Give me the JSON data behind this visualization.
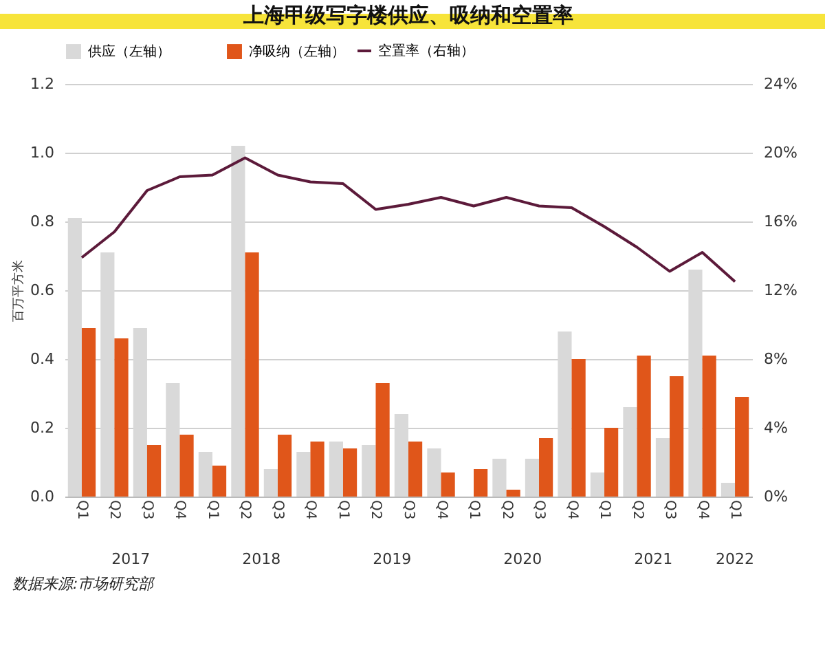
{
  "chart_data": {
    "type": "bar",
    "title": "上海甲级写字楼供应、吸纳和空置率",
    "ylabel": "百万平方米",
    "categories": [
      "Q1",
      "Q2",
      "Q3",
      "Q4",
      "Q1",
      "Q2",
      "Q3",
      "Q4",
      "Q1",
      "Q2",
      "Q3",
      "Q4",
      "Q1",
      "Q2",
      "Q3",
      "Q4",
      "Q1",
      "Q2",
      "Q3",
      "Q4",
      "Q1"
    ],
    "series": [
      {
        "name": "供应（左轴）",
        "color": "#d9d9d9",
        "values": [
          0.81,
          0.71,
          0.49,
          0.33,
          0.13,
          1.02,
          0.08,
          0.13,
          0.16,
          0.15,
          0.24,
          0.14,
          0,
          0.11,
          0.11,
          0.48,
          0.07,
          0.26,
          0.17,
          0.66,
          0.04
        ]
      },
      {
        "name": "净吸纳（左轴）",
        "color": "#e0561a",
        "values": [
          0.49,
          0.46,
          0.15,
          0.18,
          0.09,
          0.71,
          0.18,
          0.16,
          0.14,
          0.33,
          0.16,
          0.07,
          0.08,
          0.02,
          0.17,
          0.4,
          0.2,
          0.41,
          0.35,
          0.41,
          0.29
        ]
      },
      {
        "name": "空置率（右轴）",
        "color": "#5c1a3a",
        "type": "line",
        "axis": "y2",
        "values": [
          13.9,
          15.4,
          17.8,
          18.6,
          18.7,
          19.7,
          18.7,
          18.3,
          18.2,
          16.7,
          17.0,
          17.4,
          16.9,
          17.4,
          16.9,
          16.8,
          15.7,
          14.5,
          13.1,
          14.2,
          12.5
        ]
      }
    ],
    "ylim": [
      0,
      1.2
    ],
    "yticks": [
      {
        "value": 0,
        "label": "0.0"
      },
      0.2,
      0.4,
      0.6,
      0.8,
      {
        "value": 1,
        "label": "1.0"
      },
      1.2
    ],
    "y2lim": [
      0,
      24
    ],
    "y2ticks": [
      {
        "value": 0,
        "label": "0%"
      },
      {
        "value": 4,
        "label": "4%"
      },
      {
        "value": 8,
        "label": "8%"
      },
      {
        "value": 12,
        "label": "12%"
      },
      {
        "value": 16,
        "label": "16%"
      },
      {
        "value": 20,
        "label": "20%"
      },
      {
        "value": 24,
        "label": "24%"
      }
    ],
    "grid": "y",
    "legend": "top",
    "annotations": [
      "2017",
      "2018",
      "2019",
      "2020",
      "2021",
      "2022",
      "数据来源:市场研究部"
    ]
  }
}
